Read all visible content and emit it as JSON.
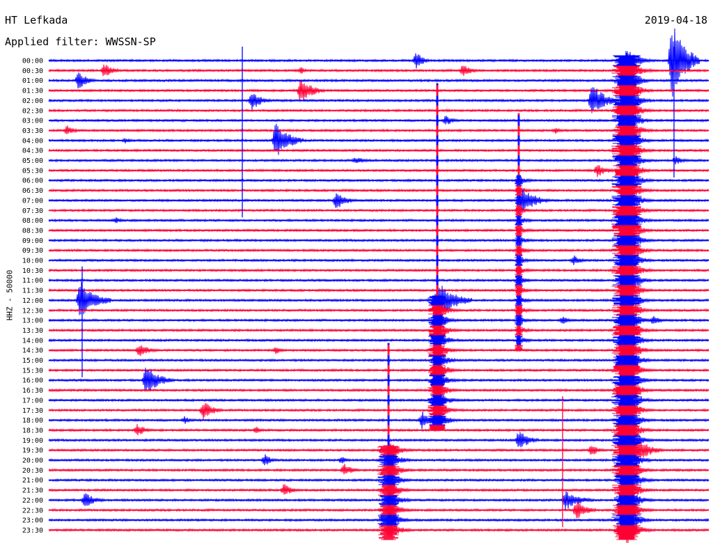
{
  "header": {
    "station": "HT Lefkada",
    "filter": "Applied filter: WWSSN-SP",
    "date": "2019-04-18"
  },
  "axis": {
    "ylabel": "HHZ - 50000"
  },
  "colors": {
    "line_even": "#0000ff",
    "line_odd": "#ff0033",
    "background": "#ffffff"
  },
  "chart_data": {
    "type": "line",
    "description_of_series": "helicorder traces, one per 30-minute window",
    "time_labels": [
      "00:00",
      "00:30",
      "01:00",
      "01:30",
      "02:00",
      "02:30",
      "03:00",
      "03:30",
      "04:00",
      "04:30",
      "05:00",
      "05:30",
      "06:00",
      "06:30",
      "07:00",
      "07:30",
      "08:00",
      "08:30",
      "09:00",
      "09:30",
      "10:00",
      "10:30",
      "11:00",
      "11:30",
      "12:00",
      "12:30",
      "13:00",
      "13:30",
      "14:00",
      "14:30",
      "15:00",
      "15:30",
      "16:00",
      "16:30",
      "17:00",
      "17:30",
      "18:00",
      "18:30",
      "19:00",
      "19:30",
      "20:00",
      "20:30",
      "21:00",
      "21:30",
      "22:00",
      "22:30",
      "23:00",
      "23:30"
    ],
    "events": [
      {
        "row": 0,
        "x": 598,
        "amp": 14,
        "len": 20
      },
      {
        "row": 0,
        "x": 965,
        "amp": 60,
        "len": 40
      },
      {
        "row": 1,
        "x": 150,
        "amp": 12,
        "len": 25
      },
      {
        "row": 1,
        "x": 665,
        "amp": 10,
        "len": 25
      },
      {
        "row": 1,
        "x": 432,
        "amp": 6,
        "len": 15
      },
      {
        "row": 2,
        "x": 113,
        "amp": 14,
        "len": 25
      },
      {
        "row": 3,
        "x": 432,
        "amp": 20,
        "len": 35
      },
      {
        "row": 4,
        "x": 362,
        "amp": 14,
        "len": 30
      },
      {
        "row": 4,
        "x": 850,
        "amp": 25,
        "len": 40
      },
      {
        "row": 6,
        "x": 640,
        "amp": 8,
        "len": 25
      },
      {
        "row": 7,
        "x": 96,
        "amp": 8,
        "len": 22
      },
      {
        "row": 7,
        "x": 798,
        "amp": 5,
        "len": 18
      },
      {
        "row": 8,
        "x": 396,
        "amp": 28,
        "len": 40
      },
      {
        "row": 8,
        "x": 180,
        "amp": 5,
        "len": 20
      },
      {
        "row": 10,
        "x": 970,
        "amp": 7,
        "len": 25
      },
      {
        "row": 10,
        "x": 510,
        "amp": 5,
        "len": 40
      },
      {
        "row": 11,
        "x": 858,
        "amp": 10,
        "len": 30
      },
      {
        "row": 14,
        "x": 483,
        "amp": 14,
        "len": 30
      },
      {
        "row": 14,
        "x": 750,
        "amp": 20,
        "len": 40
      },
      {
        "row": 16,
        "x": 166,
        "amp": 5,
        "len": 18
      },
      {
        "row": 20,
        "x": 824,
        "amp": 8,
        "len": 22
      },
      {
        "row": 24,
        "x": 115,
        "amp": 30,
        "len": 45
      },
      {
        "row": 24,
        "x": 628,
        "amp": 30,
        "len": 50
      },
      {
        "row": 26,
        "x": 808,
        "amp": 6,
        "len": 25
      },
      {
        "row": 26,
        "x": 938,
        "amp": 8,
        "len": 20
      },
      {
        "row": 29,
        "x": 200,
        "amp": 10,
        "len": 30
      },
      {
        "row": 29,
        "x": 396,
        "amp": 6,
        "len": 18
      },
      {
        "row": 32,
        "x": 210,
        "amp": 22,
        "len": 40
      },
      {
        "row": 35,
        "x": 292,
        "amp": 14,
        "len": 30
      },
      {
        "row": 36,
        "x": 606,
        "amp": 14,
        "len": 25
      },
      {
        "row": 36,
        "x": 265,
        "amp": 6,
        "len": 20
      },
      {
        "row": 37,
        "x": 197,
        "amp": 10,
        "len": 25
      },
      {
        "row": 37,
        "x": 368,
        "amp": 6,
        "len": 15
      },
      {
        "row": 38,
        "x": 745,
        "amp": 16,
        "len": 30
      },
      {
        "row": 39,
        "x": 912,
        "amp": 22,
        "len": 40
      },
      {
        "row": 39,
        "x": 850,
        "amp": 10,
        "len": 20
      },
      {
        "row": 40,
        "x": 380,
        "amp": 10,
        "len": 20
      },
      {
        "row": 40,
        "x": 490,
        "amp": 6,
        "len": 20
      },
      {
        "row": 41,
        "x": 494,
        "amp": 10,
        "len": 25
      },
      {
        "row": 43,
        "x": 408,
        "amp": 10,
        "len": 25
      },
      {
        "row": 44,
        "x": 122,
        "amp": 12,
        "len": 30
      },
      {
        "row": 44,
        "x": 812,
        "amp": 16,
        "len": 40
      },
      {
        "row": 45,
        "x": 828,
        "amp": 16,
        "len": 30
      }
    ],
    "large_events": [
      {
        "x": 558,
        "from_row": 39,
        "to_row": 47,
        "amp": 16,
        "spike_from_row": 29
      },
      {
        "x": 628,
        "from_row": 24,
        "to_row": 36,
        "amp": 14,
        "spike_from_row": 3
      },
      {
        "x": 900,
        "from_row": 0,
        "to_row": 47,
        "amp": 22,
        "spike_from_row": 0
      },
      {
        "x": 745,
        "from_row": 12,
        "to_row": 28,
        "amp": 6,
        "spike_from_row": 6
      }
    ],
    "spikes": [
      {
        "x": 348,
        "from_row": 0,
        "to_row": 15
      },
      {
        "x": 118,
        "from_row": 22,
        "to_row": 31
      },
      {
        "x": 808,
        "from_row": 35,
        "to_row": 46
      },
      {
        "x": 968,
        "from_row": 0,
        "to_row": 11
      }
    ]
  }
}
